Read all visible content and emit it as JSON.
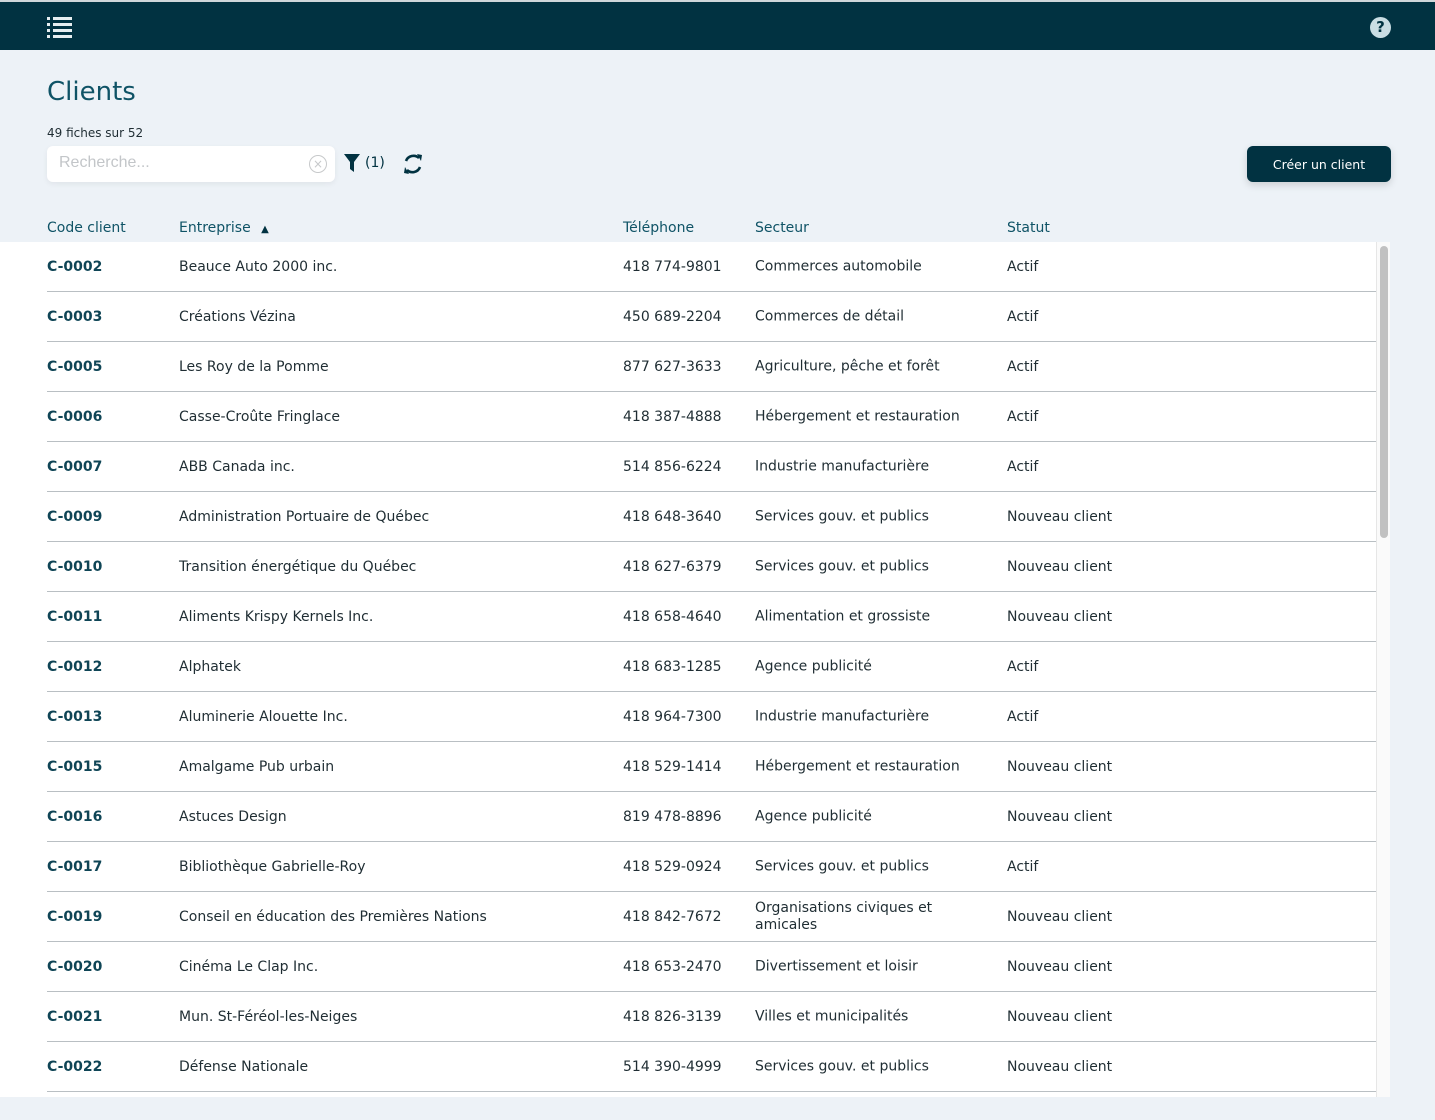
{
  "header": {
    "menu_icon": "list-menu-icon",
    "help_icon": "question-circle-icon",
    "help_glyph": "?"
  },
  "page": {
    "title": "Clients",
    "count": "49 fiches sur 52"
  },
  "toolbar": {
    "search_placeholder": "Recherche...",
    "search_value": "",
    "clear_glyph": "×",
    "filter_count": "(1)",
    "create_label": "Créer un client"
  },
  "colors": {
    "topbar": "#013241",
    "accent": "#0f5366",
    "button": "#013241"
  },
  "table": {
    "columns": [
      "Code client",
      "Entreprise",
      "Téléphone",
      "Secteur",
      "Statut"
    ],
    "sort_indicator": "▲",
    "rows": [
      [
        "C-0002",
        "Beauce Auto 2000 inc.",
        "418 774-9801",
        "Commerces automobile",
        "Actif"
      ],
      [
        "C-0003",
        "Créations Vézina",
        "450 689-2204",
        "Commerces de détail",
        "Actif"
      ],
      [
        "C-0005",
        "Les Roy de la Pomme",
        "877 627-3633",
        "Agriculture, pêche et forêt",
        "Actif"
      ],
      [
        "C-0006",
        "Casse-Croûte Fringlace",
        "418 387-4888",
        "Hébergement et restauration",
        "Actif"
      ],
      [
        "C-0007",
        "ABB Canada inc.",
        "514 856-6224",
        "Industrie manufacturière",
        "Actif"
      ],
      [
        "C-0009",
        "Administration Portuaire de Québec",
        "418 648-3640",
        "Services gouv. et publics",
        "Nouveau client"
      ],
      [
        "C-0010",
        "Transition énergétique du Québec",
        "418 627-6379",
        "Services gouv. et publics",
        "Nouveau client"
      ],
      [
        "C-0011",
        "Aliments Krispy Kernels Inc.",
        "418 658-4640",
        "Alimentation et grossiste",
        "Nouveau client"
      ],
      [
        "C-0012",
        "Alphatek",
        "418 683-1285",
        "Agence publicité",
        "Actif"
      ],
      [
        "C-0013",
        "Aluminerie Alouette Inc.",
        "418 964-7300",
        "Industrie manufacturière",
        "Actif"
      ],
      [
        "C-0015",
        "Amalgame Pub urbain",
        "418 529-1414",
        "Hébergement et restauration",
        "Nouveau client"
      ],
      [
        "C-0016",
        "Astuces Design",
        "819 478-8896",
        "Agence publicité",
        "Nouveau client"
      ],
      [
        "C-0017",
        "Bibliothèque Gabrielle-Roy",
        "418 529-0924",
        "Services gouv. et publics",
        "Actif"
      ],
      [
        "C-0019",
        "Conseil en éducation des Premières Nations",
        "418 842-7672",
        "Organisations civiques et amicales",
        "Nouveau client"
      ],
      [
        "C-0020",
        "Cinéma Le Clap Inc.",
        "418 653-2470",
        "Divertissement et loisir",
        "Nouveau client"
      ],
      [
        "C-0021",
        "Mun. St-Féréol-les-Neiges",
        "418 826-3139",
        "Villes et municipalités",
        "Nouveau client"
      ],
      [
        "C-0022",
        "Défense Nationale",
        "514 390-4999",
        "Services gouv. et publics",
        "Nouveau client"
      ]
    ]
  }
}
